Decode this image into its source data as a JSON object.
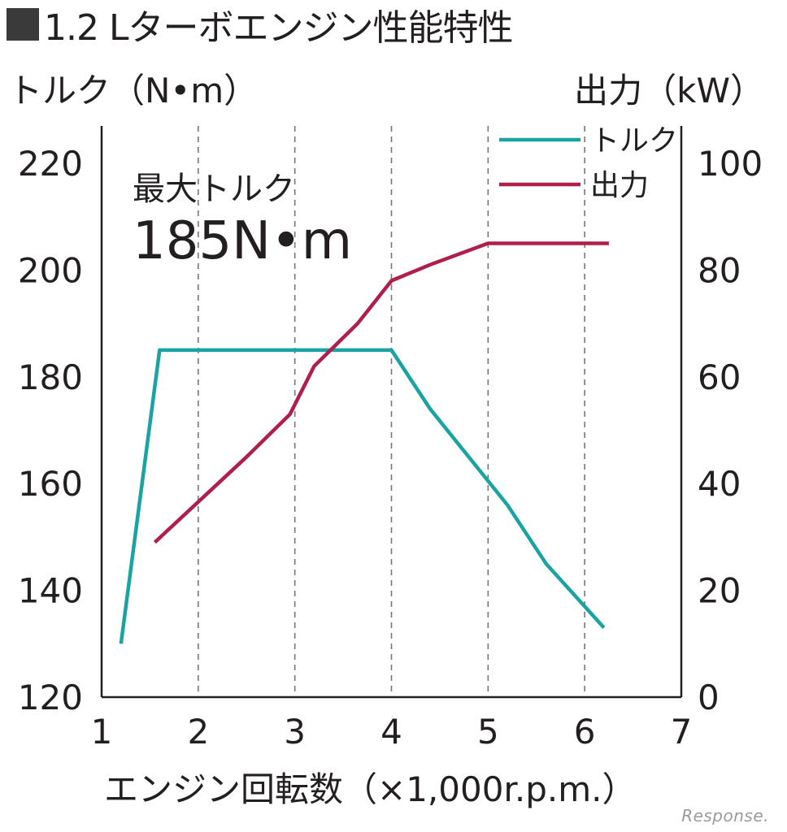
{
  "title": "1.2 Lターボエンジン性能特性",
  "watermark": "Response.",
  "colors": {
    "torque": "#1aa3a3",
    "power": "#b01e4a",
    "axis": "#231f20",
    "grid": "#777777"
  },
  "chart_data": {
    "type": "line",
    "xlabel": "エンジン回転数（×1,000r.p.m.）",
    "ylabel_left": "トルク（N•m）",
    "ylabel_right": "出力（kW）",
    "xlim": [
      1,
      7
    ],
    "ylim_left": [
      120,
      227
    ],
    "ylim_right": [
      0,
      107
    ],
    "x_ticks": [
      1,
      2,
      3,
      4,
      5,
      6,
      7
    ],
    "y_left_ticks": [
      120,
      140,
      160,
      180,
      200,
      220
    ],
    "y_right_ticks": [
      0,
      20,
      40,
      60,
      80,
      100
    ],
    "grid": "vertical dashed at x=2..6",
    "legend_position": "top-right",
    "series": [
      {
        "name": "トルク",
        "axis": "left",
        "x": [
          1.2,
          1.6,
          4.0,
          4.4,
          5.2,
          5.6,
          6.2
        ],
        "y": [
          130,
          185,
          185,
          174,
          156,
          145,
          133
        ]
      },
      {
        "name": "出力",
        "axis": "right",
        "x": [
          1.55,
          2.5,
          2.95,
          3.2,
          3.65,
          4.0,
          4.4,
          5.0,
          5.2,
          6.25
        ],
        "y": [
          29,
          45,
          53,
          62,
          70,
          78,
          81,
          85,
          85,
          85
        ]
      }
    ],
    "annotation": {
      "label": "最大トルク",
      "value": "185N•m"
    }
  }
}
